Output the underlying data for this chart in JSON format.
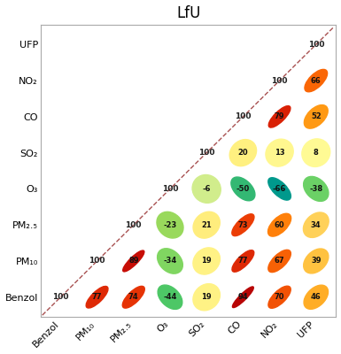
{
  "title": "LfU",
  "xlabels": [
    "Benzol",
    "PM₁₀",
    "PM₂.₅",
    "O₃",
    "SO₂",
    "CO",
    "NO₂",
    "UFP"
  ],
  "ylabels": [
    "UFP",
    "NO₂",
    "CO",
    "SO₂",
    "O₃",
    "PM₂.₅",
    "PM₁₀",
    "Benzol"
  ],
  "corr_matrix": [
    [
      100,
      77,
      74,
      -44,
      19,
      94,
      70,
      46
    ],
    [
      77,
      100,
      89,
      -34,
      19,
      77,
      67,
      39
    ],
    [
      74,
      89,
      100,
      -23,
      21,
      73,
      60,
      34
    ],
    [
      -44,
      -34,
      -23,
      100,
      -6,
      -50,
      -66,
      -38
    ],
    [
      19,
      19,
      21,
      -6,
      100,
      20,
      13,
      8
    ],
    [
      94,
      77,
      73,
      -50,
      20,
      100,
      79,
      52
    ],
    [
      70,
      67,
      60,
      -66,
      13,
      79,
      100,
      66
    ],
    [
      46,
      39,
      34,
      -38,
      8,
      52,
      66,
      100
    ]
  ],
  "color_stops": [
    [
      -100,
      [
        0.0,
        0.5,
        0.5
      ]
    ],
    [
      -66,
      [
        0.0,
        0.6,
        0.55
      ]
    ],
    [
      -50,
      [
        0.2,
        0.72,
        0.45
      ]
    ],
    [
      -44,
      [
        0.3,
        0.78,
        0.4
      ]
    ],
    [
      -38,
      [
        0.42,
        0.82,
        0.4
      ]
    ],
    [
      -34,
      [
        0.5,
        0.84,
        0.38
      ]
    ],
    [
      -23,
      [
        0.6,
        0.85,
        0.36
      ]
    ],
    [
      -6,
      [
        0.82,
        0.93,
        0.55
      ]
    ],
    [
      0,
      [
        1.0,
        1.0,
        0.6
      ]
    ],
    [
      8,
      [
        1.0,
        0.98,
        0.58
      ]
    ],
    [
      13,
      [
        1.0,
        0.97,
        0.56
      ]
    ],
    [
      19,
      [
        1.0,
        0.95,
        0.52
      ]
    ],
    [
      20,
      [
        1.0,
        0.94,
        0.5
      ]
    ],
    [
      21,
      [
        1.0,
        0.93,
        0.49
      ]
    ],
    [
      34,
      [
        1.0,
        0.82,
        0.35
      ]
    ],
    [
      39,
      [
        1.0,
        0.76,
        0.25
      ]
    ],
    [
      46,
      [
        1.0,
        0.68,
        0.15
      ]
    ],
    [
      52,
      [
        1.0,
        0.6,
        0.08
      ]
    ],
    [
      60,
      [
        1.0,
        0.5,
        0.04
      ]
    ],
    [
      66,
      [
        0.98,
        0.4,
        0.02
      ]
    ],
    [
      67,
      [
        0.97,
        0.38,
        0.02
      ]
    ],
    [
      70,
      [
        0.95,
        0.32,
        0.02
      ]
    ],
    [
      73,
      [
        0.92,
        0.24,
        0.02
      ]
    ],
    [
      74,
      [
        0.9,
        0.2,
        0.02
      ]
    ],
    [
      77,
      [
        0.87,
        0.16,
        0.02
      ]
    ],
    [
      79,
      [
        0.85,
        0.13,
        0.02
      ]
    ],
    [
      89,
      [
        0.78,
        0.05,
        0.02
      ]
    ],
    [
      94,
      [
        0.72,
        0.02,
        0.02
      ]
    ],
    [
      100,
      [
        0.68,
        0.02,
        0.02
      ]
    ]
  ],
  "background_color": "#ffffff",
  "title_fontsize": 12,
  "label_fontsize": 8,
  "diag_color": "#993333",
  "spine_color": "#aaaaaa"
}
